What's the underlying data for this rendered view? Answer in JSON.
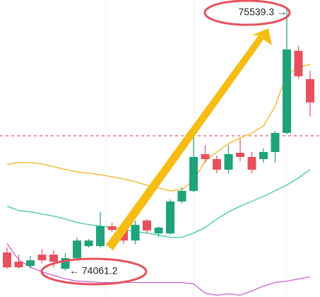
{
  "chart_data": {
    "type": "candlestick",
    "annotations": [
      "75539.3 →",
      "← 74061.2"
    ],
    "ylim": [
      73913,
      75595
    ],
    "reference_line": 74826,
    "up_color": "#1ea37a",
    "down_color": "#e9505c",
    "open": [
      74165,
      74113,
      74089,
      74153,
      74153,
      74073,
      74133,
      74201,
      74201,
      74314,
      74302,
      74233,
      74346,
      74273,
      74273,
      74454,
      74514,
      74722,
      74694,
      74634,
      74730,
      74706,
      74694,
      74734,
      74842,
      75307,
      75147
    ],
    "high": [
      74193,
      74153,
      74145,
      74185,
      74177,
      74161,
      74249,
      74241,
      74394,
      74334,
      74322,
      74346,
      74354,
      74314,
      74466,
      74534,
      74834,
      74774,
      74714,
      74774,
      74810,
      74734,
      74754,
      74854,
      75539.3,
      75335,
      75195
    ],
    "low": [
      74073,
      74073,
      74073,
      74105,
      74081,
      74061.2,
      74125,
      74193,
      74193,
      74281,
      74213,
      74213,
      74273,
      74253,
      74265,
      74442,
      74506,
      74674,
      74614,
      74614,
      74682,
      74614,
      74674,
      74674,
      74834,
      75147,
      74935
    ],
    "close": [
      74081,
      74081,
      74121,
      74121,
      74113,
      74133,
      74233,
      74233,
      74314,
      74293,
      74233,
      74322,
      74290,
      74306,
      74454,
      74514,
      74706,
      74694,
      74634,
      74722,
      74706,
      74634,
      74734,
      74842,
      75315,
      75163,
      75015
    ],
    "lines": [
      {
        "color": "#f2b519",
        "values": [
          74663,
          74675,
          74675,
          74667,
          74651,
          74635,
          74622,
          74614,
          74606,
          74594,
          74582,
          74566,
          74546,
          74530,
          74514,
          74522,
          74574,
          74683,
          74734,
          74782,
          74814,
          74842,
          74882,
          74994,
          75174,
          75214,
          75230
        ]
      },
      {
        "color": "#3cc7a8",
        "values": [
          74427,
          74403,
          74395,
          74383,
          74371,
          74355,
          74335,
          74323,
          74315,
          74307,
          74295,
          74283,
          74275,
          74263,
          74251,
          74251,
          74275,
          74307,
          74355,
          74395,
          74427,
          74455,
          74483,
          74515,
          74547,
          74587,
          74635
        ]
      },
      {
        "color": "#cc5fd0",
        "values": [
          74215,
          74123,
          74083,
          74055,
          74035,
          74015,
          74003,
          73999,
          73995,
          73995,
          73995,
          73995,
          73995,
          73995,
          73995,
          73995,
          73987,
          73935,
          73923,
          73931,
          73923,
          73947,
          73975,
          73995,
          74003,
          74015,
          74027
        ]
      }
    ]
  }
}
